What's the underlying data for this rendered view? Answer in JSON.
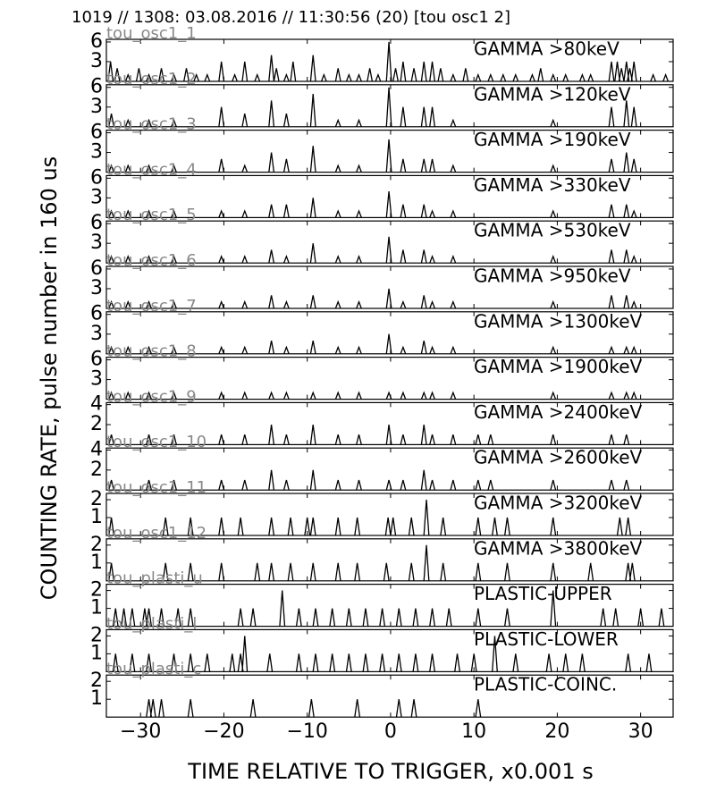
{
  "figure": {
    "title": "1019 // 1308:   03.08.2016 // 11:30:56 (20)  [tou osc1 2]",
    "ylabel": "COUNTING RATE,   pulse number in 160 us",
    "xlabel": "TIME RELATIVE TO TRIGGER,   x0.001 s",
    "xlim": [
      -34.1,
      33.9
    ],
    "xticks": [
      {
        "value": -30,
        "label": "−30"
      },
      {
        "value": -20,
        "label": "−20"
      },
      {
        "value": -10,
        "label": "−10"
      },
      0,
      10,
      20,
      30
    ]
  },
  "chart_data": [
    {
      "type": "spike",
      "label": "GAMMA >80keV",
      "name": "tou_osc1_1",
      "color": "#000000",
      "ylim": [
        0,
        6.4
      ],
      "yticks": [
        3,
        6
      ],
      "x": [
        -33.6,
        -32.8,
        -31.5,
        -30.2,
        -29,
        -27.5,
        -26,
        -24.5,
        -23.3,
        -22,
        -20.3,
        -18.7,
        -17.5,
        -16,
        -14.3,
        -13.7,
        -12.5,
        -11.7,
        -9.3,
        -8,
        -6.3,
        -5,
        -3.8,
        -2.5,
        -1.5,
        -0.2,
        0.6,
        1.5,
        2.8,
        4,
        5,
        6,
        7.5,
        9,
        10.5,
        12,
        13.5,
        15,
        17,
        18,
        19.5,
        21,
        23,
        24,
        26.5,
        27.2,
        27.7,
        28.3,
        28.7,
        29.2,
        31.5,
        33
      ],
      "values": [
        3,
        2,
        1,
        2,
        1,
        2,
        1,
        2,
        1,
        1,
        3,
        1,
        3,
        1,
        4,
        2,
        1,
        3,
        4,
        1,
        2,
        1,
        1,
        2,
        1,
        6,
        2,
        3,
        2,
        3,
        3,
        2,
        1,
        2,
        1,
        1,
        1,
        1,
        1,
        2,
        1,
        1,
        1,
        1,
        3,
        3,
        2,
        3,
        2,
        3,
        1,
        1
      ]
    },
    {
      "type": "spike",
      "label": "GAMMA >120keV",
      "name": "tou_osc1_2",
      "color": "#000000",
      "ylim": [
        0,
        6.4
      ],
      "yticks": [
        3,
        6
      ],
      "x": [
        -33.5,
        -31.5,
        -29,
        -26,
        -20.3,
        -17.5,
        -14.3,
        -12.5,
        -9.3,
        -6.3,
        -3.8,
        -0.2,
        1.5,
        4,
        5,
        7.5,
        19.5,
        26.5,
        28.3,
        29.2
      ],
      "values": [
        2,
        1,
        1,
        1,
        3,
        2,
        4,
        2,
        5,
        1,
        1,
        6,
        3,
        3,
        3,
        1,
        1,
        3,
        4,
        3
      ]
    },
    {
      "type": "spike",
      "label": "GAMMA >190keV",
      "name": "tou_osc1_3",
      "color": "#000000",
      "ylim": [
        0,
        6.4
      ],
      "yticks": [
        3,
        6
      ],
      "x": [
        -33.5,
        -31.5,
        -29,
        -26,
        -20.3,
        -17.5,
        -14.3,
        -12.5,
        -9.3,
        -6.3,
        -3.8,
        -0.2,
        1.5,
        4,
        5,
        7.5,
        19.5,
        26.5,
        28.3,
        29.2
      ],
      "values": [
        1,
        1,
        1,
        1,
        2,
        1,
        3,
        2,
        4,
        1,
        1,
        5,
        2,
        2,
        2,
        1,
        1,
        2,
        3,
        2
      ]
    },
    {
      "type": "spike",
      "label": "GAMMA >330keV",
      "name": "tou_osc1_4",
      "color": "#000000",
      "ylim": [
        0,
        6.4
      ],
      "yticks": [
        3,
        6
      ],
      "x": [
        -33.5,
        -31.5,
        -29,
        -26,
        -20.3,
        -17.5,
        -14.3,
        -12.5,
        -9.3,
        -6.3,
        -3.8,
        -0.2,
        1.5,
        4,
        5,
        7.5,
        19.5,
        26.5,
        28.3,
        29.2
      ],
      "values": [
        1,
        1,
        1,
        1,
        1,
        1,
        2,
        2,
        3,
        1,
        1,
        4,
        2,
        2,
        1,
        1,
        1,
        2,
        2,
        1
      ]
    },
    {
      "type": "spike",
      "label": "GAMMA >530keV",
      "name": "tou_osc1_5",
      "color": "#000000",
      "ylim": [
        0,
        6.4
      ],
      "yticks": [
        3,
        6
      ],
      "x": [
        -33.5,
        -31.5,
        -29,
        -26,
        -20.3,
        -17.5,
        -14.3,
        -12.5,
        -9.3,
        -6.3,
        -3.8,
        -0.2,
        1.5,
        4,
        5,
        7.5,
        19.5,
        26.5,
        28.3,
        29.2
      ],
      "values": [
        1,
        1,
        1,
        1,
        1,
        1,
        2,
        1,
        3,
        1,
        1,
        4,
        2,
        2,
        1,
        1,
        1,
        2,
        2,
        1
      ]
    },
    {
      "type": "spike",
      "label": "GAMMA >950keV",
      "name": "tou_osc1_6",
      "color": "#000000",
      "ylim": [
        0,
        6.4
      ],
      "yticks": [
        3,
        6
      ],
      "x": [
        -33.5,
        -31.5,
        -29,
        -26,
        -20.3,
        -17.5,
        -14.3,
        -12.5,
        -9.3,
        -6.3,
        -3.8,
        -0.2,
        1.5,
        4,
        5,
        7.5,
        19.5,
        26.5,
        28.3,
        29.2
      ],
      "values": [
        1,
        1,
        1,
        1,
        1,
        1,
        2,
        1,
        2,
        1,
        1,
        3,
        1,
        2,
        1,
        1,
        1,
        2,
        2,
        1
      ]
    },
    {
      "type": "spike",
      "label": "GAMMA >1300keV",
      "name": "tou_osc1_7",
      "color": "#000000",
      "ylim": [
        0,
        6.4
      ],
      "yticks": [
        3,
        6
      ],
      "x": [
        -33.5,
        -31.5,
        -29,
        -26,
        -20.3,
        -17.5,
        -14.3,
        -12.5,
        -9.3,
        -6.3,
        -3.8,
        -0.2,
        1.5,
        4,
        5,
        7.5,
        19.5,
        26.5,
        28.3,
        29.2
      ],
      "values": [
        1,
        1,
        1,
        1,
        1,
        1,
        2,
        1,
        2,
        1,
        1,
        3,
        1,
        2,
        1,
        1,
        1,
        1,
        1,
        1
      ]
    },
    {
      "type": "spike",
      "label": "GAMMA >1900keV",
      "name": "tou_osc1_8",
      "color": "#000000",
      "ylim": [
        0,
        6.4
      ],
      "yticks": [
        3,
        6
      ],
      "x": [
        -33.5,
        -31.5,
        -29,
        -26,
        -20.3,
        -17.5,
        -14.3,
        -12.5,
        -9.3,
        -6.3,
        -3.8,
        -0.2,
        1.5,
        4,
        5,
        7.5,
        19.5,
        26.5,
        28.3,
        29.2
      ],
      "values": [
        1,
        1,
        1,
        1,
        1,
        1,
        1,
        1,
        1,
        1,
        1,
        1,
        1,
        1,
        1,
        1,
        1,
        1,
        1,
        1
      ]
    },
    {
      "type": "spike",
      "label": "GAMMA >2400keV",
      "name": "tou_osc1_9",
      "color": "#000000",
      "ylim": [
        0,
        4.2
      ],
      "yticks": [
        2,
        4
      ],
      "x": [
        -33.5,
        -29,
        -26,
        -20.3,
        -17.5,
        -14.3,
        -12.5,
        -9.3,
        -6.3,
        -3.8,
        -0.2,
        1.5,
        4,
        5,
        7.5,
        10.5,
        12,
        19.5,
        26.5,
        28.3
      ],
      "values": [
        1,
        1,
        1,
        1,
        1,
        2,
        1,
        2,
        1,
        1,
        2,
        1,
        2,
        1,
        1,
        1,
        1,
        1,
        1,
        1
      ]
    },
    {
      "type": "spike",
      "label": "GAMMA >2600keV",
      "name": "tou_osc1_10",
      "color": "#000000",
      "ylim": [
        0,
        4.2
      ],
      "yticks": [
        2,
        4
      ],
      "x": [
        -33.5,
        -29,
        -26,
        -20.3,
        -17.5,
        -14.3,
        -12.5,
        -9.3,
        -6.3,
        -3.8,
        -0.2,
        1.5,
        4,
        5,
        7.5,
        10.5,
        12,
        19.5,
        26.5,
        28.3
      ],
      "values": [
        1,
        1,
        1,
        1,
        1,
        2,
        1,
        2,
        1,
        1,
        1,
        1,
        2,
        1,
        1,
        1,
        1,
        1,
        1,
        1
      ]
    },
    {
      "type": "spike",
      "label": "GAMMA >3200keV",
      "name": "tou_osc1_11",
      "color": "#000000",
      "ylim": [
        0,
        2.35
      ],
      "yticks": [
        1,
        2
      ],
      "x": [
        -33.5,
        -27,
        -24,
        -20.3,
        -18,
        -14.3,
        -12,
        -10,
        -9.3,
        -6.3,
        -4,
        -0.3,
        0.3,
        2.5,
        4.3,
        6.3,
        10.5,
        12.5,
        14,
        19.5,
        27.5,
        28.5
      ],
      "values": [
        1,
        1,
        1,
        1,
        1,
        1,
        1,
        1,
        1,
        1,
        1,
        1,
        1,
        1,
        2,
        1,
        1,
        1,
        1,
        1,
        1,
        1
      ]
    },
    {
      "type": "spike",
      "label": "GAMMA >3800keV",
      "name": "tou_osc1_12",
      "color": "#000000",
      "ylim": [
        0,
        2.35
      ],
      "yticks": [
        1,
        2
      ],
      "x": [
        -33.5,
        -27,
        -24,
        -20.3,
        -16,
        -14.3,
        -12,
        -9.3,
        -6.3,
        -4,
        -0.5,
        2.5,
        4.3,
        6.3,
        10.5,
        14,
        19.5,
        24,
        28.5,
        29
      ],
      "values": [
        1,
        1,
        1,
        1,
        1,
        1,
        1,
        1,
        1,
        1,
        1,
        1,
        2,
        1,
        1,
        1,
        1,
        1,
        1,
        1
      ]
    },
    {
      "type": "spike",
      "label": "PLASTIC-UPPER",
      "name": "tou_plasti_u",
      "color": "#000000",
      "ylim": [
        0,
        2.35
      ],
      "yticks": [
        1,
        2
      ],
      "x": [
        -33,
        -32,
        -31,
        -29.5,
        -29,
        -27.5,
        -25.5,
        -24,
        -18,
        -16.5,
        -13,
        -11,
        -9,
        -7,
        -5,
        -3,
        -1,
        1,
        3,
        5,
        7,
        10.5,
        14,
        19.5,
        25.5,
        27,
        30,
        32.5
      ],
      "values": [
        1,
        1,
        1,
        1,
        1,
        1,
        1,
        1,
        1,
        1,
        2,
        1,
        1,
        1,
        1,
        1,
        1,
        1,
        1,
        1,
        1,
        1,
        1,
        2,
        1,
        1,
        1,
        1
      ]
    },
    {
      "type": "spike",
      "label": "PLASTIC-LOWER",
      "name": "tou_plasti_l",
      "color": "#000000",
      "ylim": [
        0,
        2.35
      ],
      "yticks": [
        1,
        2
      ],
      "x": [
        -33,
        -31,
        -29,
        -26,
        -24,
        -22,
        -19,
        -18,
        -17.5,
        -14.5,
        -11,
        -9,
        -7,
        -5,
        -3,
        -1,
        1,
        3,
        5,
        8,
        10,
        12.5,
        15,
        19,
        21,
        23,
        28.5,
        31
      ],
      "values": [
        1,
        1,
        1,
        1,
        1,
        1,
        1,
        1,
        2,
        1,
        1,
        1,
        1,
        1,
        1,
        1,
        1,
        1,
        1,
        1,
        1,
        2,
        1,
        1,
        1,
        1,
        1,
        1
      ]
    },
    {
      "type": "spike",
      "label": "PLASTIC-COINC.",
      "name": "tou_plasti_c",
      "color": "#000000",
      "ylim": [
        0,
        2.35
      ],
      "yticks": [
        1,
        2
      ],
      "x": [
        -29,
        -28.5,
        -27.5,
        -24,
        -16.5,
        -9.5,
        -4,
        1,
        2.8,
        10.5
      ],
      "values": [
        1,
        1,
        1,
        1,
        1,
        1,
        1,
        1,
        1,
        1
      ]
    }
  ]
}
